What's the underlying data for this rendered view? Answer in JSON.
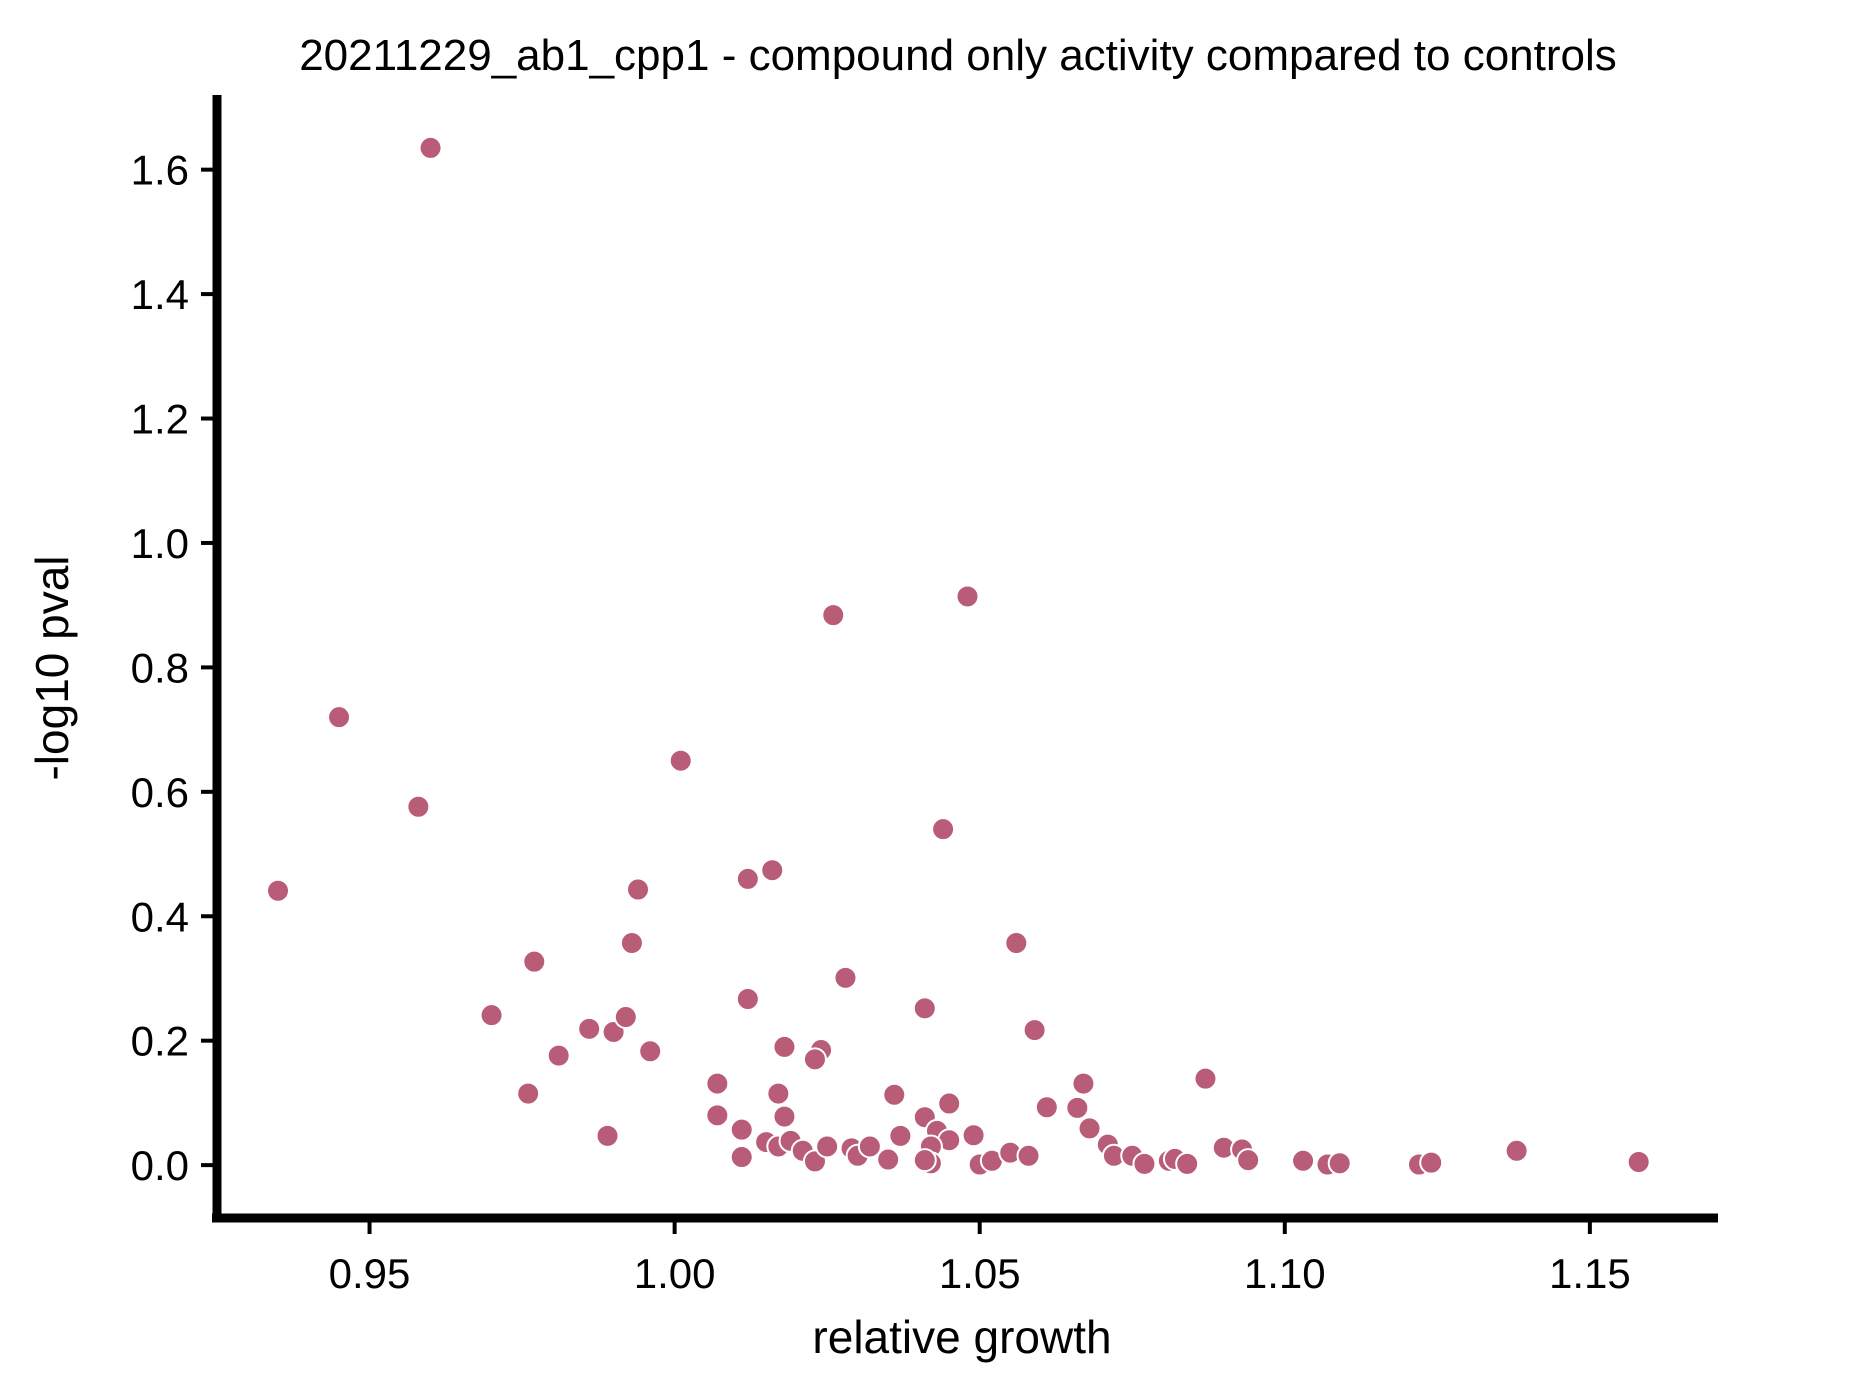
{
  "chart_data": {
    "type": "scatter",
    "title": "20211229_ab1_cpp1 - compound only activity compared to controls",
    "xlabel": "relative growth",
    "ylabel": "-log10 pval",
    "xlim": [
      0.925,
      1.171
    ],
    "ylim": [
      -0.085,
      1.72
    ],
    "xticks": [
      0.95,
      1.0,
      1.05,
      1.1,
      1.15
    ],
    "xtick_labels": [
      "0.95",
      "1.00",
      "1.05",
      "1.10",
      "1.15"
    ],
    "yticks": [
      0.0,
      0.2,
      0.4,
      0.6,
      0.8,
      1.0,
      1.2,
      1.4,
      1.6
    ],
    "ytick_labels": [
      "0.0",
      "0.2",
      "0.4",
      "0.6",
      "0.8",
      "1.0",
      "1.2",
      "1.4",
      "1.6"
    ],
    "grid": false,
    "marker_color": "#b85c78",
    "marker_edge_color": "#ffffff",
    "points": [
      [
        0.96,
        1.635
      ],
      [
        0.945,
        0.72
      ],
      [
        0.958,
        0.576
      ],
      [
        0.935,
        0.441
      ],
      [
        1.001,
        0.65
      ],
      [
        0.994,
        0.443
      ],
      [
        0.993,
        0.357
      ],
      [
        0.977,
        0.327
      ],
      [
        0.97,
        0.241
      ],
      [
        0.986,
        0.219
      ],
      [
        0.99,
        0.214
      ],
      [
        0.992,
        0.238
      ],
      [
        0.981,
        0.176
      ],
      [
        0.996,
        0.183
      ],
      [
        0.976,
        0.115
      ],
      [
        0.989,
        0.047
      ],
      [
        1.012,
        0.46
      ],
      [
        1.016,
        0.474
      ],
      [
        1.012,
        0.267
      ],
      [
        1.048,
        0.914
      ],
      [
        1.026,
        0.884
      ],
      [
        1.028,
        0.301
      ],
      [
        1.044,
        0.54
      ],
      [
        1.056,
        0.357
      ],
      [
        1.041,
        0.252
      ],
      [
        1.059,
        0.217
      ],
      [
        1.018,
        0.19
      ],
      [
        1.024,
        0.185
      ],
      [
        1.023,
        0.17
      ],
      [
        1.007,
        0.131
      ],
      [
        1.017,
        0.115
      ],
      [
        1.007,
        0.08
      ],
      [
        1.018,
        0.078
      ],
      [
        1.011,
        0.057
      ],
      [
        1.015,
        0.037
      ],
      [
        1.017,
        0.03
      ],
      [
        1.019,
        0.039
      ],
      [
        1.021,
        0.023
      ],
      [
        1.023,
        0.006
      ],
      [
        1.025,
        0.03
      ],
      [
        1.029,
        0.027
      ],
      [
        1.03,
        0.015
      ],
      [
        1.032,
        0.03
      ],
      [
        1.035,
        0.009
      ],
      [
        1.036,
        0.113
      ],
      [
        1.037,
        0.047
      ],
      [
        1.011,
        0.013
      ],
      [
        1.041,
        0.077
      ],
      [
        1.043,
        0.055
      ],
      [
        1.045,
        0.099
      ],
      [
        1.045,
        0.04
      ],
      [
        1.049,
        0.048
      ],
      [
        1.042,
        0.03
      ],
      [
        1.042,
        0.003
      ],
      [
        1.041,
        0.008
      ],
      [
        1.05,
        0.001
      ],
      [
        1.052,
        0.007
      ],
      [
        1.055,
        0.02
      ],
      [
        1.058,
        0.015
      ],
      [
        1.061,
        0.093
      ],
      [
        1.066,
        0.092
      ],
      [
        1.067,
        0.131
      ],
      [
        1.068,
        0.059
      ],
      [
        1.071,
        0.033
      ],
      [
        1.072,
        0.015
      ],
      [
        1.075,
        0.015
      ],
      [
        1.077,
        0.002
      ],
      [
        1.081,
        0.007
      ],
      [
        1.082,
        0.01
      ],
      [
        1.084,
        0.002
      ],
      [
        1.087,
        0.139
      ],
      [
        1.09,
        0.028
      ],
      [
        1.093,
        0.025
      ],
      [
        1.094,
        0.008
      ],
      [
        1.103,
        0.007
      ],
      [
        1.107,
        0.001
      ],
      [
        1.109,
        0.003
      ],
      [
        1.122,
        0.001
      ],
      [
        1.124,
        0.004
      ],
      [
        1.138,
        0.023
      ],
      [
        1.158,
        0.005
      ]
    ]
  }
}
